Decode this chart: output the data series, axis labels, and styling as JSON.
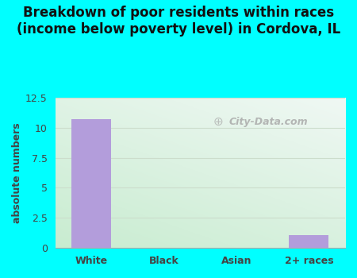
{
  "title": "Breakdown of poor residents within races\n(income below poverty level) in Cordova, IL",
  "categories": [
    "White",
    "Black",
    "Asian",
    "2+ races"
  ],
  "values": [
    10.7,
    0,
    0,
    1.1
  ],
  "bar_color": "#b39ddb",
  "ylabel": "absolute numbers",
  "ylim": [
    0,
    12.5
  ],
  "yticks": [
    0,
    2.5,
    5,
    7.5,
    10,
    12.5
  ],
  "background_outer": "#00ffff",
  "background_inner_topleft": "#d4edd8",
  "background_inner_topright": "#e8f4f0",
  "background_inner_bottomleft": "#c8ecd0",
  "background_inner_bottomright": "#dff0ea",
  "grid_color": "#ccddcc",
  "title_fontsize": 12,
  "title_fontweight": "bold",
  "watermark_text": "City-Data.com"
}
